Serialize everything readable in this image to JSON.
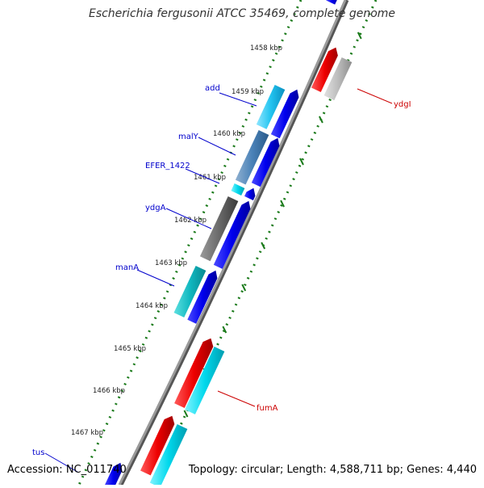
{
  "title": "Escherichia fergusonii ATCC 35469, complete genome",
  "footer": {
    "accession": "Accession: NC_011740",
    "summary": "Topology: circular; Length: 4,588,711 bp; Genes: 4,440"
  },
  "ticks": [
    {
      "label": "1458 kbp"
    },
    {
      "label": "1459 kbp"
    },
    {
      "label": "1460 kbp"
    },
    {
      "label": "1461 kbp"
    },
    {
      "label": "1462 kbp"
    },
    {
      "label": "1463 kbp"
    },
    {
      "label": "1464 kbp"
    },
    {
      "label": "1465 kbp"
    },
    {
      "label": "1466 kbp"
    },
    {
      "label": "1467 kbp"
    }
  ],
  "genes_left": [
    {
      "name": "add",
      "color": "#0000cc"
    },
    {
      "name": "malY",
      "color": "#0000cc"
    },
    {
      "name": "EFER_1422",
      "color": "#0000cc"
    },
    {
      "name": "ydgA",
      "color": "#0000cc"
    },
    {
      "name": "manA",
      "color": "#0000cc"
    },
    {
      "name": "tus",
      "color": "#0000cc"
    }
  ],
  "genes_right": [
    {
      "name": "ydgI",
      "color": "#cc0000"
    },
    {
      "name": "fumA",
      "color": "#cc0000"
    }
  ],
  "colors": {
    "backbone": "#8a8a8a",
    "tick_dots": "#1a7a1a",
    "forward_gene": "#0000ee",
    "reverse_gene": "#ee0000",
    "cyan_feature": "#00c8dc",
    "gray_feature": "#b0b0b0"
  }
}
